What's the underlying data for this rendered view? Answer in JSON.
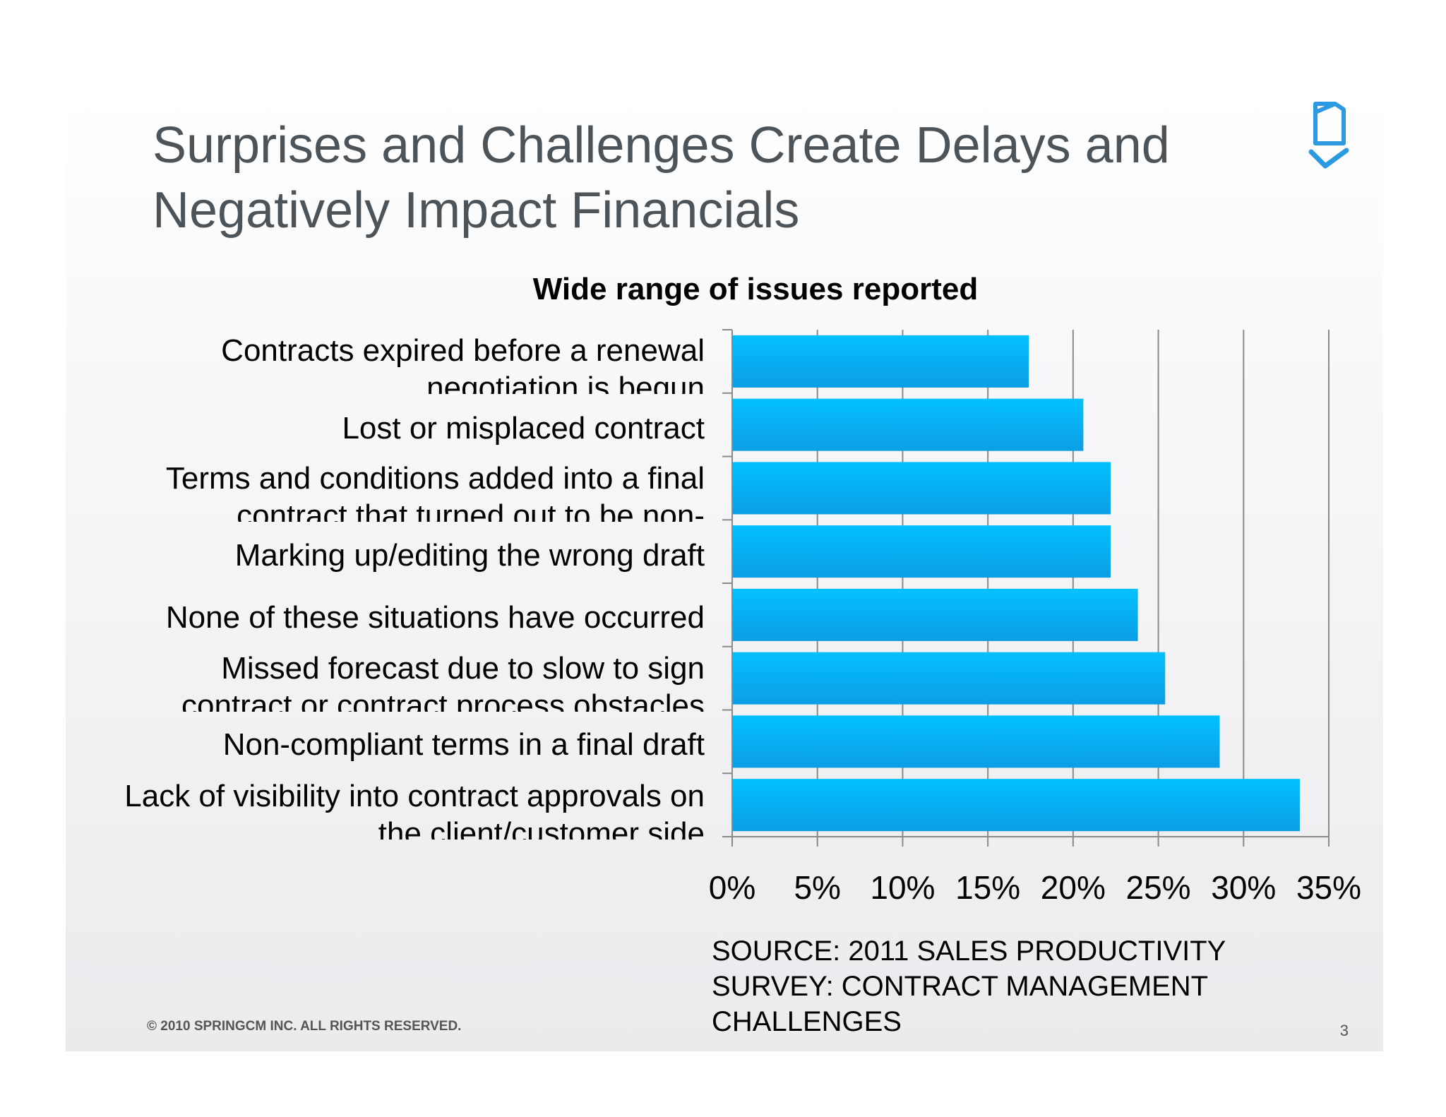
{
  "slide": {
    "title": "Surprises and Challenges Create Delays and Negatively Impact Financials",
    "source_note": "SOURCE: 2011 SALES PRODUCTIVITY SURVEY: CONTRACT MANAGEMENT CHALLENGES",
    "copyright": "© 2010 SPRINGCM INC. ALL RIGHTS RESERVED.",
    "page_number": "3",
    "logo_icon": "document-check-icon"
  },
  "chart_data": {
    "type": "bar",
    "orientation": "horizontal",
    "title": "Wide range of issues reported",
    "categories": [
      "Contracts expired before a renewal negotiation is begun",
      "Lost or misplaced contract",
      "Terms and conditions added into a final contract that turned out to be non-",
      "Marking up/editing the wrong draft",
      "None of these situations have occurred",
      "Missed forecast due to slow to sign contract or contract process obstacles",
      "Non-compliant terms in a final draft",
      "Lack of visibility into contract approvals on the client/customer side"
    ],
    "values": [
      17.4,
      20.6,
      22.2,
      22.2,
      23.8,
      25.4,
      28.6,
      33.3
    ],
    "x_unit": "%",
    "xlim": [
      0,
      35
    ],
    "x_ticks": [
      0,
      5,
      10,
      15,
      20,
      25,
      30,
      35
    ],
    "x_tick_labels": [
      "0%",
      "5%",
      "10%",
      "15%",
      "20%",
      "25%",
      "30%",
      "35%"
    ],
    "grid": true,
    "legend": "none",
    "bar_color": "#14b4f2",
    "bar_color_light": "#02c0ff",
    "bar_color_dark": "#0c9ee4"
  }
}
